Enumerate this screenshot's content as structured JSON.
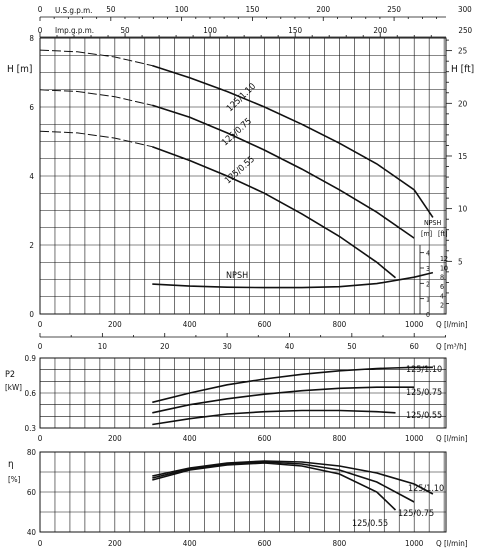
{
  "chart_data": [
    {
      "type": "line",
      "panel": "head",
      "title": "",
      "xlabel": "Q [l/min]",
      "ylabel": "H [m]",
      "y2label": "H [ft]",
      "x_main_label": "Q [l/min]",
      "x_m3h_label": "Q [m³/h]",
      "x_usgpm_label": "U.S.g.p.m.",
      "x_impgpm_label": "Imp.g.p.m.",
      "xlim": [
        0,
        1085
      ],
      "ylim": [
        0,
        8
      ],
      "y2lim": [
        0,
        26.2
      ],
      "grid": true,
      "x_ticks": [
        "0",
        "200",
        "400",
        "600",
        "800",
        "1000"
      ],
      "x_ticks_m3h": [
        "0",
        "10",
        "20",
        "30",
        "40",
        "50",
        "60"
      ],
      "x_ticks_usgpm": [
        "0",
        "50",
        "100",
        "150",
        "200",
        "250",
        "300"
      ],
      "x_ticks_impgpm": [
        "0",
        "50",
        "100",
        "150",
        "200",
        "250"
      ],
      "y_ticks": [
        "0",
        "2",
        "4",
        "6",
        "8"
      ],
      "y2_ticks": [
        "5",
        "10",
        "15",
        "20",
        "25"
      ],
      "series": [
        {
          "name": "125/1.10",
          "dashed": {
            "x": [
              0,
              100,
              200,
              300
            ],
            "y": [
              7.65,
              7.6,
              7.45,
              7.2
            ]
          },
          "x": [
            300,
            400,
            500,
            600,
            700,
            800,
            900,
            1000,
            1050
          ],
          "y": [
            7.2,
            6.85,
            6.45,
            6.0,
            5.5,
            4.95,
            4.35,
            3.6,
            2.8
          ]
        },
        {
          "name": "125/0.75",
          "dashed": {
            "x": [
              0,
              100,
              200,
              300
            ],
            "y": [
              6.5,
              6.45,
              6.3,
              6.05
            ]
          },
          "x": [
            300,
            400,
            500,
            600,
            700,
            800,
            900,
            1000
          ],
          "y": [
            6.05,
            5.7,
            5.25,
            4.75,
            4.2,
            3.6,
            2.95,
            2.2
          ]
        },
        {
          "name": "125/0.55",
          "dashed": {
            "x": [
              0,
              100,
              200,
              300
            ],
            "y": [
              5.3,
              5.25,
              5.1,
              4.85
            ]
          },
          "x": [
            300,
            400,
            500,
            600,
            700,
            800,
            900,
            950
          ],
          "y": [
            4.85,
            4.45,
            4.0,
            3.5,
            2.9,
            2.25,
            1.5,
            1.05
          ]
        }
      ]
    },
    {
      "type": "line",
      "panel": "npsh",
      "title": "",
      "name": "NPSH",
      "ylabel": "NPSH",
      "y_unit_m": "[m]",
      "y_unit_ft": "[ft]",
      "ylim": [
        0,
        4.5
      ],
      "y_ticks": [
        "0",
        "1",
        "2",
        "3",
        "4"
      ],
      "y2_ticks": [
        "2",
        "4",
        "6",
        "8",
        "10",
        "12"
      ],
      "x": [
        300,
        400,
        500,
        600,
        700,
        800,
        900,
        1000,
        1050
      ],
      "y": [
        1.95,
        1.82,
        1.75,
        1.72,
        1.72,
        1.78,
        1.98,
        2.4,
        2.7
      ]
    },
    {
      "type": "line",
      "panel": "power",
      "title": "",
      "ylabel": "P2",
      "y_unit": "[kW]",
      "xlabel": "Q [l/min]",
      "xlim": [
        0,
        1085
      ],
      "ylim": [
        0.3,
        0.9
      ],
      "y_ticks": [
        "0.3",
        "0.6",
        "0.9"
      ],
      "x_ticks": [
        "0",
        "200",
        "400",
        "600",
        "800",
        "1000"
      ],
      "series": [
        {
          "name": "125/1.10",
          "x": [
            300,
            400,
            500,
            600,
            700,
            800,
            900,
            1000,
            1050
          ],
          "y": [
            0.52,
            0.6,
            0.67,
            0.72,
            0.76,
            0.79,
            0.81,
            0.82,
            0.82
          ]
        },
        {
          "name": "125/0.75",
          "x": [
            300,
            400,
            500,
            600,
            700,
            800,
            900,
            1000
          ],
          "y": [
            0.43,
            0.5,
            0.55,
            0.59,
            0.62,
            0.64,
            0.65,
            0.65
          ]
        },
        {
          "name": "125/0.55",
          "x": [
            300,
            400,
            500,
            600,
            700,
            800,
            900,
            950
          ],
          "y": [
            0.33,
            0.38,
            0.42,
            0.44,
            0.45,
            0.45,
            0.44,
            0.43
          ]
        }
      ]
    },
    {
      "type": "line",
      "panel": "efficiency",
      "title": "",
      "ylabel": "η",
      "y_unit": "[%]",
      "xlabel": "Q [l/min]",
      "xlim": [
        0,
        1085
      ],
      "ylim": [
        40,
        80
      ],
      "y_ticks": [
        "40",
        "60",
        "80"
      ],
      "x_ticks": [
        "0",
        "200",
        "400",
        "600",
        "800",
        "1000"
      ],
      "series": [
        {
          "name": "125/1.10",
          "x": [
            300,
            400,
            500,
            600,
            700,
            800,
            900,
            1000,
            1050
          ],
          "y": [
            68,
            72,
            74.5,
            75.5,
            75,
            73,
            69.5,
            64,
            59
          ]
        },
        {
          "name": "125/0.75",
          "x": [
            300,
            400,
            500,
            600,
            700,
            800,
            900,
            1000
          ],
          "y": [
            67,
            71.5,
            74,
            75,
            74,
            71,
            65,
            55
          ]
        },
        {
          "name": "125/0.55",
          "x": [
            300,
            400,
            500,
            600,
            700,
            800,
            900,
            950
          ],
          "y": [
            66,
            71,
            73.5,
            74.5,
            73,
            69,
            60,
            51
          ]
        }
      ]
    }
  ]
}
